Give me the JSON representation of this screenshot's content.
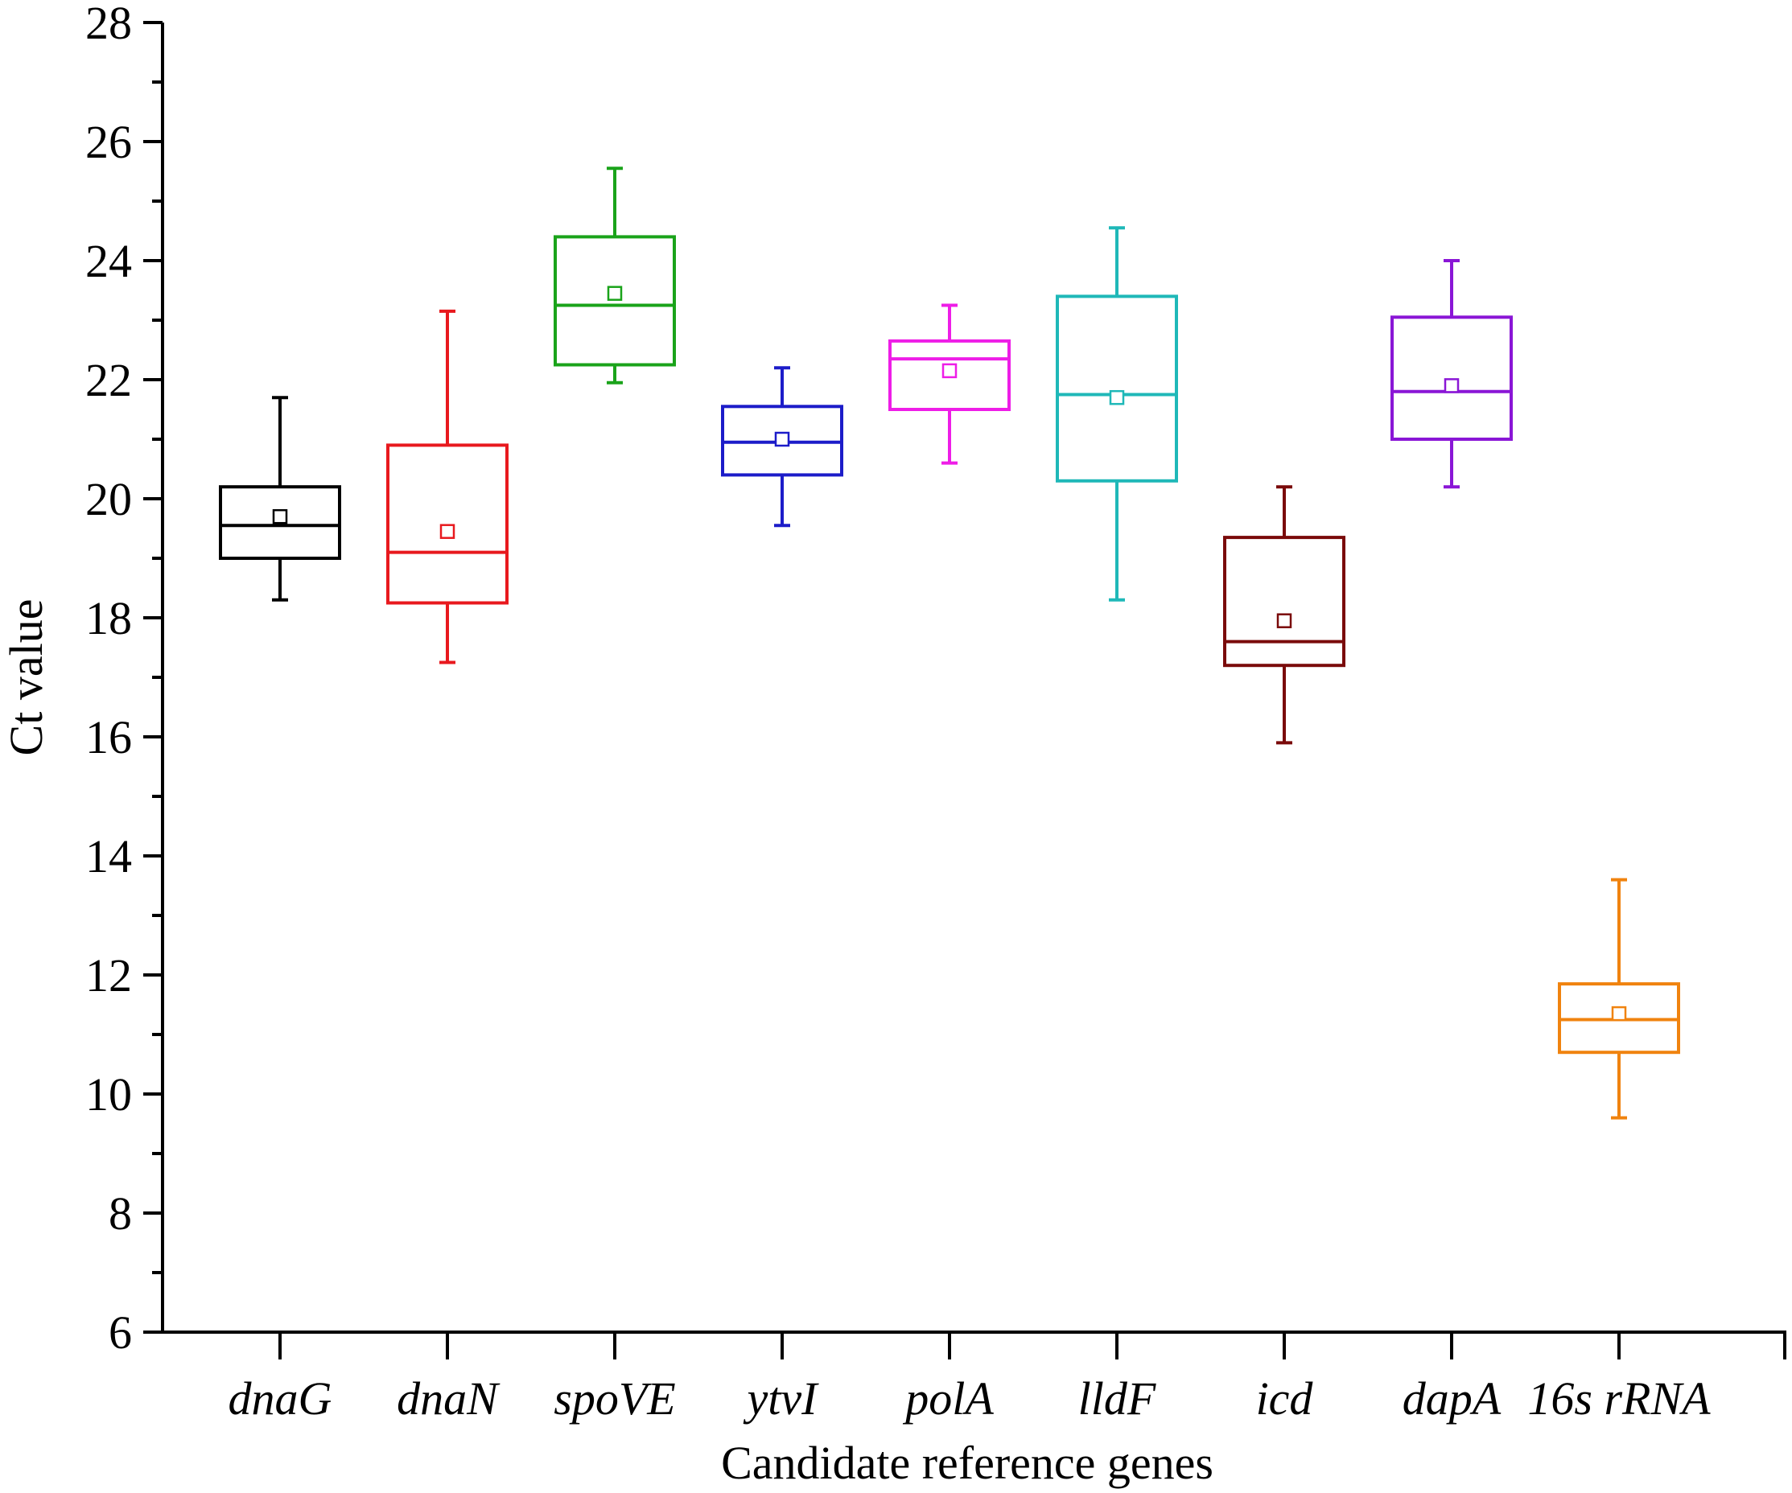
{
  "chart_data": {
    "type": "box",
    "title": "",
    "xlabel": "Candidate reference genes",
    "ylabel": "Ct value",
    "ylim": [
      6,
      28
    ],
    "yticks": [
      6,
      8,
      10,
      12,
      14,
      16,
      18,
      20,
      22,
      24,
      26,
      28
    ],
    "grid": false,
    "legend": "none",
    "series": [
      {
        "name": "dnaG",
        "color": "#000000",
        "whisker_low": 18.3,
        "q1": 19.0,
        "median": 19.55,
        "q3": 20.2,
        "whisker_high": 21.7,
        "mean": 19.7
      },
      {
        "name": "dnaN",
        "color": "#e8191e",
        "whisker_low": 17.25,
        "q1": 18.25,
        "median": 19.1,
        "q3": 20.9,
        "whisker_high": 23.15,
        "mean": 19.45
      },
      {
        "name": "spoVE",
        "color": "#1aa31a",
        "whisker_low": 21.95,
        "q1": 22.25,
        "median": 23.25,
        "q3": 24.4,
        "whisker_high": 25.55,
        "mean": 23.45
      },
      {
        "name": "ytvI",
        "color": "#1c1cc9",
        "whisker_low": 19.55,
        "q1": 20.4,
        "median": 20.95,
        "q3": 21.55,
        "whisker_high": 22.2,
        "mean": 21.0
      },
      {
        "name": "polA",
        "color": "#ee1de7",
        "whisker_low": 20.6,
        "q1": 21.5,
        "median": 22.35,
        "q3": 22.65,
        "whisker_high": 23.25,
        "mean": 22.15
      },
      {
        "name": "lldF",
        "color": "#1fb8b8",
        "whisker_low": 18.3,
        "q1": 20.3,
        "median": 21.75,
        "q3": 23.4,
        "whisker_high": 24.55,
        "mean": 21.7
      },
      {
        "name": "icd",
        "color": "#7a0a0a",
        "whisker_low": 15.9,
        "q1": 17.2,
        "median": 17.6,
        "q3": 19.35,
        "whisker_high": 20.2,
        "mean": 17.95
      },
      {
        "name": "dapA",
        "color": "#8a16d6",
        "whisker_low": 20.2,
        "q1": 21.0,
        "median": 21.8,
        "q3": 23.05,
        "whisker_high": 24.0,
        "mean": 21.9
      },
      {
        "name": "16s rRNA",
        "color": "#f0830f",
        "whisker_low": 9.6,
        "q1": 10.7,
        "median": 11.25,
        "q3": 11.85,
        "whisker_high": 13.6,
        "mean": 11.35
      }
    ]
  }
}
